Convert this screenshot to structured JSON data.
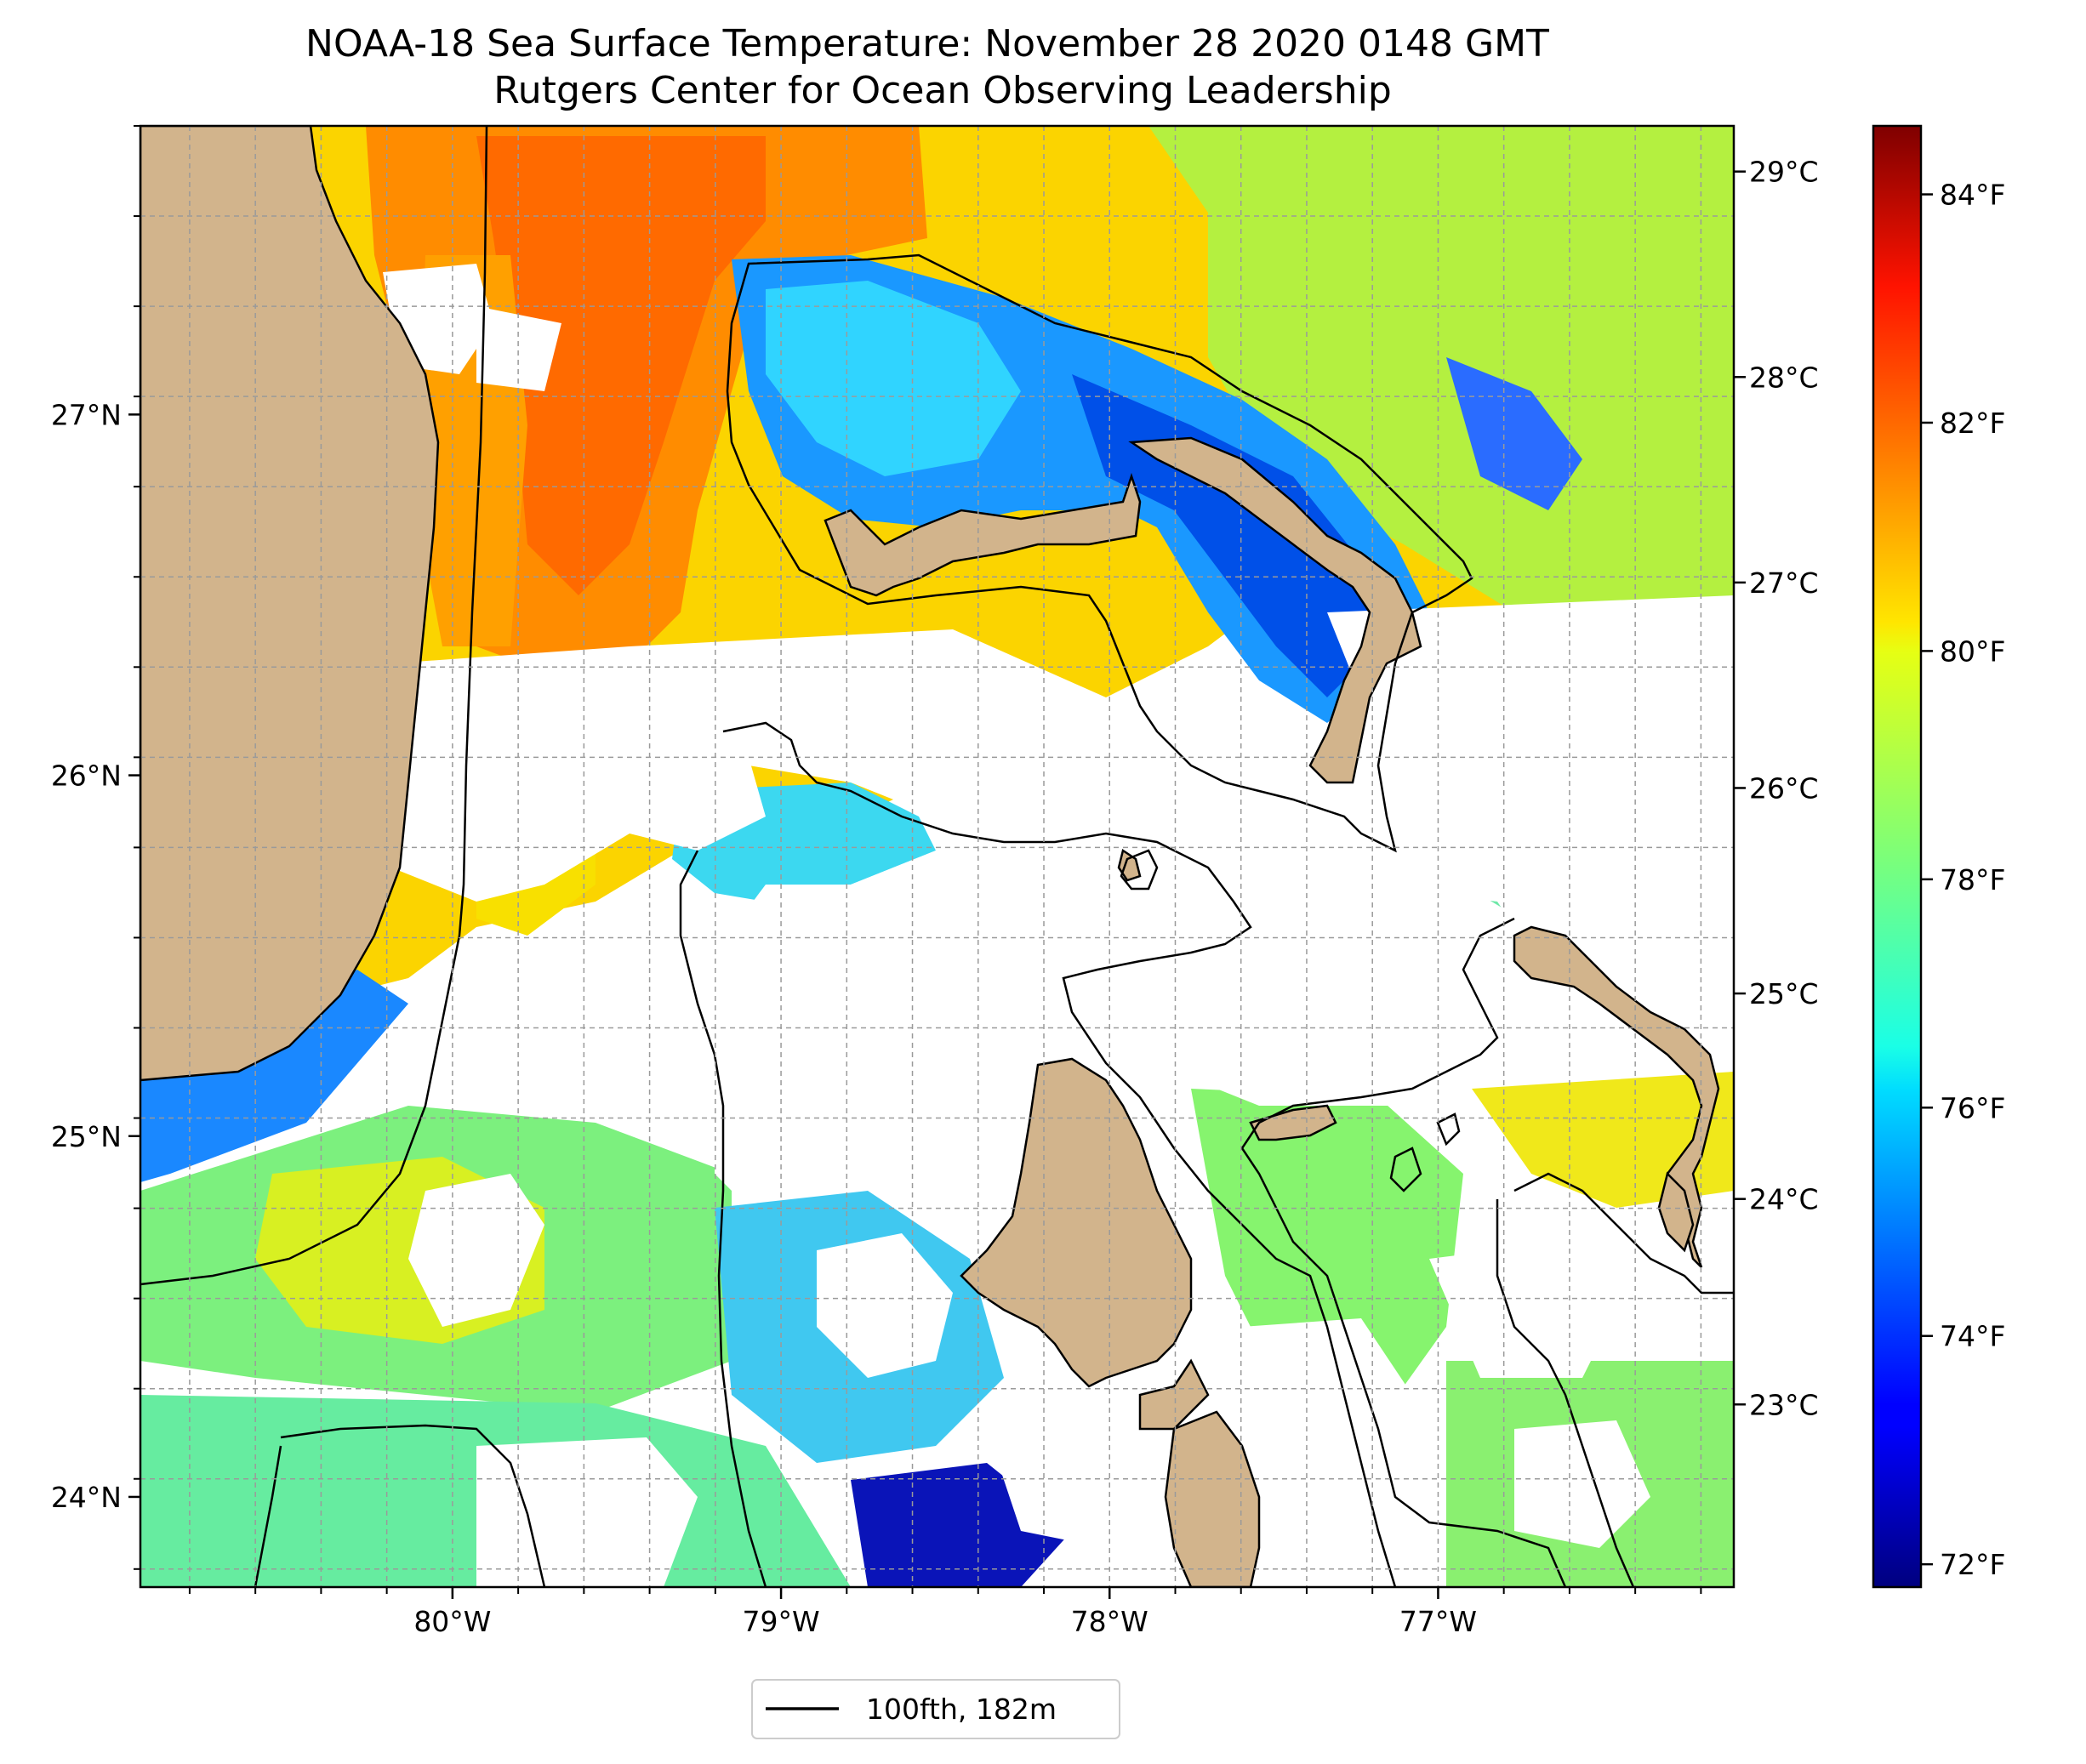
{
  "title": "NOAA-18 Sea Surface Temperature: November 28 2020 0148 GMT",
  "subtitle": "Rutgers Center for Ocean Observing Leadership",
  "map": {
    "lon_range": [
      -80.95,
      -76.1
    ],
    "lat_range": [
      23.75,
      27.8
    ],
    "lon_ticks": [
      {
        "value": -80,
        "label": "80°W"
      },
      {
        "value": -79,
        "label": "79°W"
      },
      {
        "value": -78,
        "label": "78°W"
      },
      {
        "value": -77,
        "label": "77°W"
      }
    ],
    "lat_ticks": [
      {
        "value": 27,
        "label": "27°N"
      },
      {
        "value": 26,
        "label": "26°N"
      },
      {
        "value": 25,
        "label": "25°N"
      },
      {
        "value": 24,
        "label": "24°N"
      }
    ],
    "gridlines": true,
    "land_color": "#d2b48c",
    "nodata_color": "#ffffff"
  },
  "colorbar": {
    "colormap": "jet",
    "range_f": [
      71.8,
      84.6
    ],
    "fahrenheit_ticks": [
      {
        "value": 84,
        "label": "84°F"
      },
      {
        "value": 82,
        "label": "82°F"
      },
      {
        "value": 80,
        "label": "80°F"
      },
      {
        "value": 78,
        "label": "78°F"
      },
      {
        "value": 76,
        "label": "76°F"
      },
      {
        "value": 74,
        "label": "74°F"
      },
      {
        "value": 72,
        "label": "72°F"
      }
    ],
    "celsius_ticks": [
      {
        "value": 29,
        "label": "29°C"
      },
      {
        "value": 28,
        "label": "28°C"
      },
      {
        "value": 27,
        "label": "27°C"
      },
      {
        "value": 26,
        "label": "26°C"
      },
      {
        "value": 25,
        "label": "25°C"
      },
      {
        "value": 24,
        "label": "24°C"
      },
      {
        "value": 23,
        "label": "23°C"
      }
    ]
  },
  "legend": {
    "entries": [
      {
        "label": "100fth, 182m",
        "color": "#000000"
      }
    ],
    "placement": "bottom-center"
  }
}
